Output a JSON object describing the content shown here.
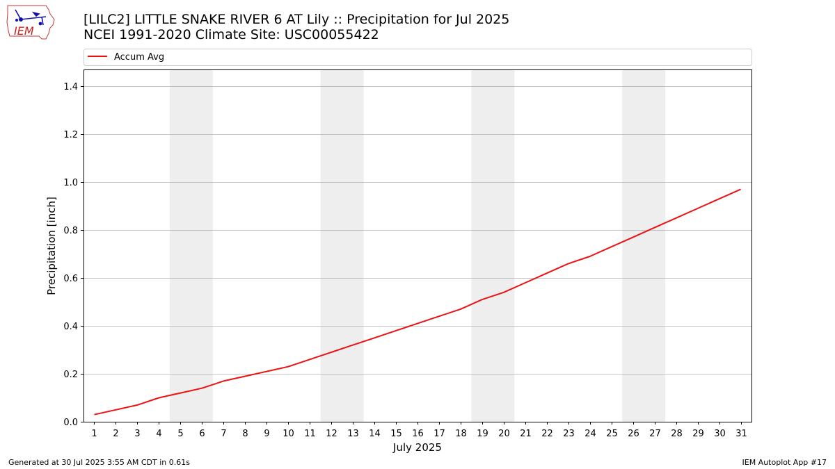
{
  "header": {
    "logo_text": "IEM",
    "title_line1": "[LILC2] LITTLE SNAKE RIVER 6 AT Lily :: Precipitation for Jul 2025",
    "title_line2": "NCEI 1991-2020 Climate Site: USC00055422"
  },
  "footer": {
    "generated": "Generated at 30 Jul 2025 3:55 AM CDT in 0.61s",
    "app": "IEM Autoplot App #17"
  },
  "colors": {
    "series": "#ee1111",
    "weekend_band": "#eeeeee",
    "grid": "#b0b0b0"
  },
  "chart_data": {
    "type": "line",
    "xlabel": "July 2025",
    "ylabel": "Precipitation [inch]",
    "xlim": [
      0.5,
      31.5
    ],
    "ylim": [
      0,
      1.47
    ],
    "yticks": [
      0.0,
      0.2,
      0.4,
      0.6,
      0.8,
      1.0,
      1.2,
      1.4
    ],
    "ytick_labels": [
      "0.0",
      "0.2",
      "0.4",
      "0.6",
      "0.8",
      "1.0",
      "1.2",
      "1.4"
    ],
    "x": [
      1,
      2,
      3,
      4,
      5,
      6,
      7,
      8,
      9,
      10,
      11,
      12,
      13,
      14,
      15,
      16,
      17,
      18,
      19,
      20,
      21,
      22,
      23,
      24,
      25,
      26,
      27,
      28,
      29,
      30,
      31
    ],
    "xtick_labels": [
      "1",
      "2",
      "3",
      "4",
      "5",
      "6",
      "7",
      "8",
      "9",
      "10",
      "11",
      "12",
      "13",
      "14",
      "15",
      "16",
      "17",
      "18",
      "19",
      "20",
      "21",
      "22",
      "23",
      "24",
      "25",
      "26",
      "27",
      "28",
      "29",
      "30",
      "31"
    ],
    "grid": "horizontal",
    "legend": "top",
    "shaded_day_ranges": [
      [
        5,
        6
      ],
      [
        12,
        13
      ],
      [
        19,
        20
      ],
      [
        26,
        27
      ]
    ],
    "series": [
      {
        "name": "Accum Avg",
        "values": [
          0.03,
          0.05,
          0.07,
          0.1,
          0.12,
          0.14,
          0.17,
          0.19,
          0.21,
          0.23,
          0.26,
          0.29,
          0.32,
          0.35,
          0.38,
          0.41,
          0.44,
          0.47,
          0.51,
          0.54,
          0.58,
          0.62,
          0.66,
          0.69,
          0.73,
          0.77,
          0.81,
          0.85,
          0.89,
          0.93,
          0.97
        ]
      }
    ]
  }
}
